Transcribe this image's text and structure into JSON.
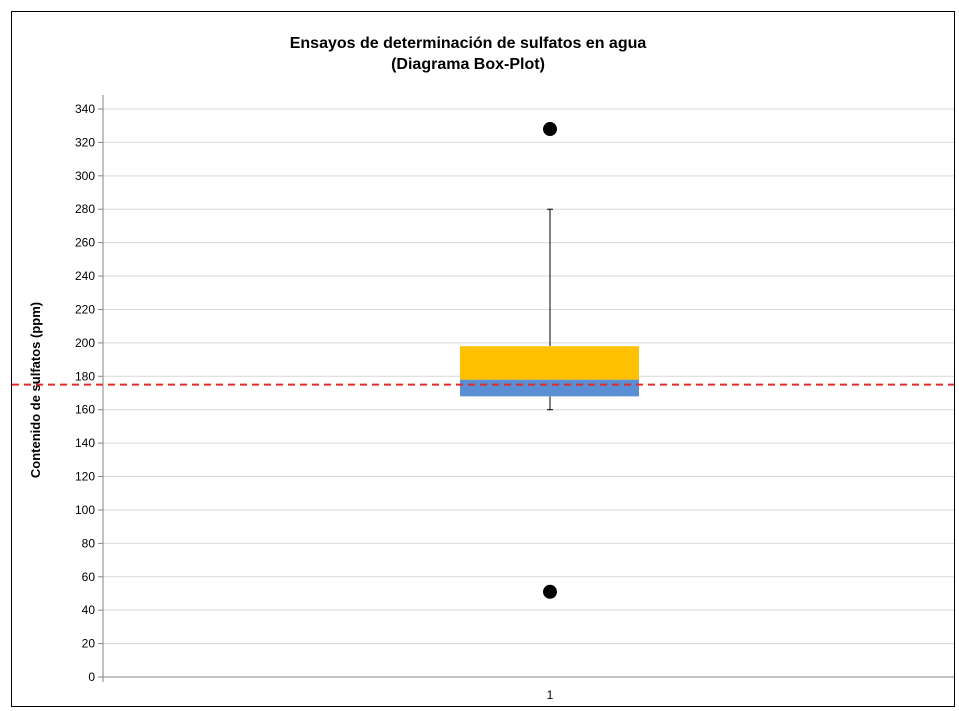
{
  "chart_data": {
    "type": "box",
    "title": "Ensayos de determinación de sulfatos en agua",
    "subtitle": "(Diagrama  Box-Plot)",
    "ylabel": "Contenido de sulfatos (ppm)",
    "xlabel": "",
    "ylim": [
      0,
      340
    ],
    "yticks": [
      0,
      20,
      40,
      60,
      80,
      100,
      120,
      140,
      160,
      180,
      200,
      220,
      240,
      260,
      280,
      300,
      320,
      340
    ],
    "categories": [
      "1"
    ],
    "box": {
      "whisker_low": 160,
      "q1": 168,
      "median": 178,
      "q3": 198,
      "whisker_high": 280
    },
    "outliers": [
      328,
      51
    ],
    "reference_line": 175,
    "grid": true,
    "colors": {
      "lower_box": "#5B8FD4",
      "upper_box": "#FFC000",
      "reference_line": "#E32B2B",
      "outlier": "#000000",
      "gridline": "#D9D9D9"
    }
  }
}
